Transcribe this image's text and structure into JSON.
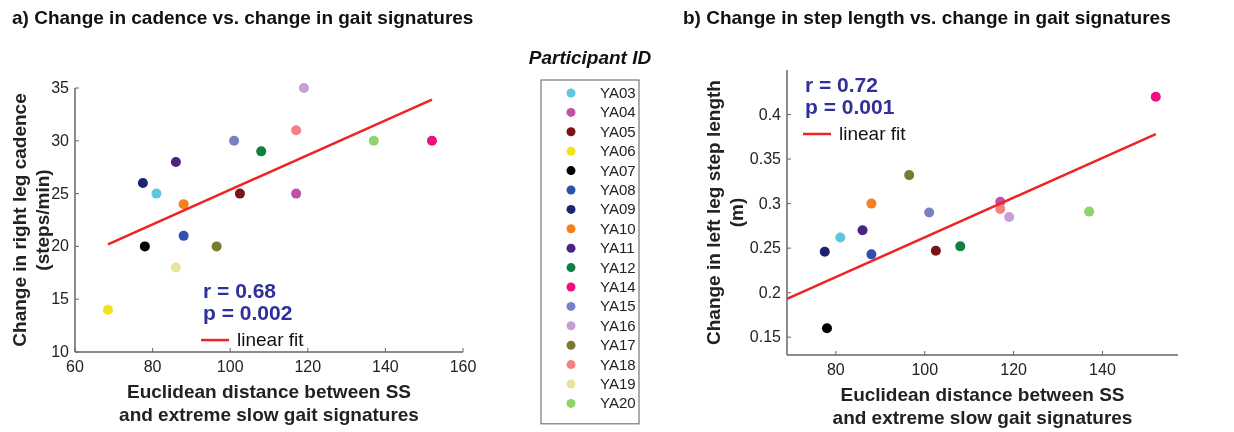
{
  "chart_data": [
    {
      "type": "scatter",
      "title": "a) Change in cadence vs. change in gait signatures",
      "xlabel": "Euclidean distance between SS\nand extreme slow gait signatures",
      "ylabel": "Change in right leg cadence\n(steps/min)",
      "legend_title": "Participant ID",
      "legend": "right",
      "marker": "circle",
      "xlim": [
        60,
        160
      ],
      "xticks": [
        60,
        80,
        100,
        120,
        140,
        160
      ],
      "ylim": [
        10,
        35
      ],
      "yticks": [
        10,
        15,
        20,
        25,
        30,
        35
      ],
      "annotations": [
        "r = 0.68",
        "p = 0.002"
      ],
      "series": [
        {
          "name": "YA03",
          "color": "#5bc8e0",
          "x": [
            81
          ],
          "values": [
            25
          ]
        },
        {
          "name": "YA04",
          "color": "#c050a8",
          "x": [
            117
          ],
          "values": [
            25
          ]
        },
        {
          "name": "YA05",
          "color": "#7a1416",
          "x": [
            102.5
          ],
          "values": [
            25
          ]
        },
        {
          "name": "YA06",
          "color": "#f2e418",
          "x": [
            68.5
          ],
          "values": [
            14
          ]
        },
        {
          "name": "YA07",
          "color": "#000000",
          "x": [
            78
          ],
          "values": [
            20
          ]
        },
        {
          "name": "YA08",
          "color": "#3050b0",
          "x": [
            88
          ],
          "values": [
            21
          ]
        },
        {
          "name": "YA09",
          "color": "#1e2370",
          "x": [
            77.5
          ],
          "values": [
            26
          ]
        },
        {
          "name": "YA10",
          "color": "#f7801e",
          "x": [
            88
          ],
          "values": [
            24
          ]
        },
        {
          "name": "YA11",
          "color": "#4a2480",
          "x": [
            86
          ],
          "values": [
            28
          ]
        },
        {
          "name": "YA12",
          "color": "#108040",
          "x": [
            108
          ],
          "values": [
            29
          ]
        },
        {
          "name": "YA14",
          "color": "#ee1080",
          "x": [
            152
          ],
          "values": [
            30
          ]
        },
        {
          "name": "YA15",
          "color": "#7a80c4",
          "x": [
            101
          ],
          "values": [
            30
          ]
        },
        {
          "name": "YA16",
          "color": "#c4a0d4",
          "x": [
            119
          ],
          "values": [
            35
          ]
        },
        {
          "name": "YA17",
          "color": "#7a7a30",
          "x": [
            96.5
          ],
          "values": [
            20
          ]
        },
        {
          "name": "YA18",
          "color": "#f48080",
          "x": [
            117
          ],
          "values": [
            31
          ]
        },
        {
          "name": "YA19",
          "color": "#e8e49a",
          "x": [
            86
          ],
          "values": [
            18
          ]
        },
        {
          "name": "YA20",
          "color": "#8ed46a",
          "x": [
            137
          ],
          "values": [
            30
          ]
        },
        {
          "name": "linear fit",
          "type": "line",
          "marker": "none",
          "color": "#ee2424",
          "x": [
            68.5,
            152
          ],
          "values": [
            20.2,
            33.9
          ]
        }
      ]
    },
    {
      "type": "scatter",
      "title": "b) Change in step length vs. change in gait signatures",
      "xlabel": "Euclidean distance between SS\nand extreme slow gait signatures",
      "ylabel": "Change in left leg step length\n(m)",
      "legend": "top left",
      "marker": "circle",
      "xlim": [
        69,
        157
      ],
      "xticks": [
        80,
        100,
        120,
        140
      ],
      "ylim": [
        0.13,
        0.45
      ],
      "yticks": [
        0.15,
        0.2,
        0.25,
        0.3,
        0.35,
        0.4
      ],
      "annotations": [
        "r = 0.72",
        "p = 0.001"
      ],
      "series": [
        {
          "color": "#5bc8e0",
          "x": [
            81
          ],
          "values": [
            0.262
          ]
        },
        {
          "color": "#c050a8",
          "x": [
            117
          ],
          "values": [
            0.302
          ]
        },
        {
          "color": "#7a1416",
          "x": [
            102.5
          ],
          "values": [
            0.247
          ]
        },
        {
          "color": "#000000",
          "x": [
            78
          ],
          "values": [
            0.16
          ]
        },
        {
          "color": "#3050b0",
          "x": [
            88
          ],
          "values": [
            0.243
          ]
        },
        {
          "color": "#1e2370",
          "x": [
            77.5
          ],
          "values": [
            0.246
          ]
        },
        {
          "color": "#f7801e",
          "x": [
            88
          ],
          "values": [
            0.3
          ]
        },
        {
          "color": "#4a2480",
          "x": [
            86
          ],
          "values": [
            0.27
          ]
        },
        {
          "color": "#108040",
          "x": [
            108
          ],
          "values": [
            0.252
          ]
        },
        {
          "color": "#ee1080",
          "x": [
            152
          ],
          "values": [
            0.42
          ]
        },
        {
          "color": "#7a80c4",
          "x": [
            101
          ],
          "values": [
            0.29
          ]
        },
        {
          "color": "#c4a0d4",
          "x": [
            119
          ],
          "values": [
            0.285
          ]
        },
        {
          "color": "#7a7a30",
          "x": [
            96.5
          ],
          "values": [
            0.332
          ]
        },
        {
          "color": "#f48080",
          "x": [
            117
          ],
          "values": [
            0.294
          ]
        },
        {
          "color": "#8ed46a",
          "x": [
            137
          ],
          "values": [
            0.291
          ]
        },
        {
          "name": "linear fit",
          "type": "line",
          "marker": "none",
          "color": "#ee2424",
          "x": [
            69,
            152
          ],
          "values": [
            0.193,
            0.378
          ]
        }
      ]
    }
  ]
}
